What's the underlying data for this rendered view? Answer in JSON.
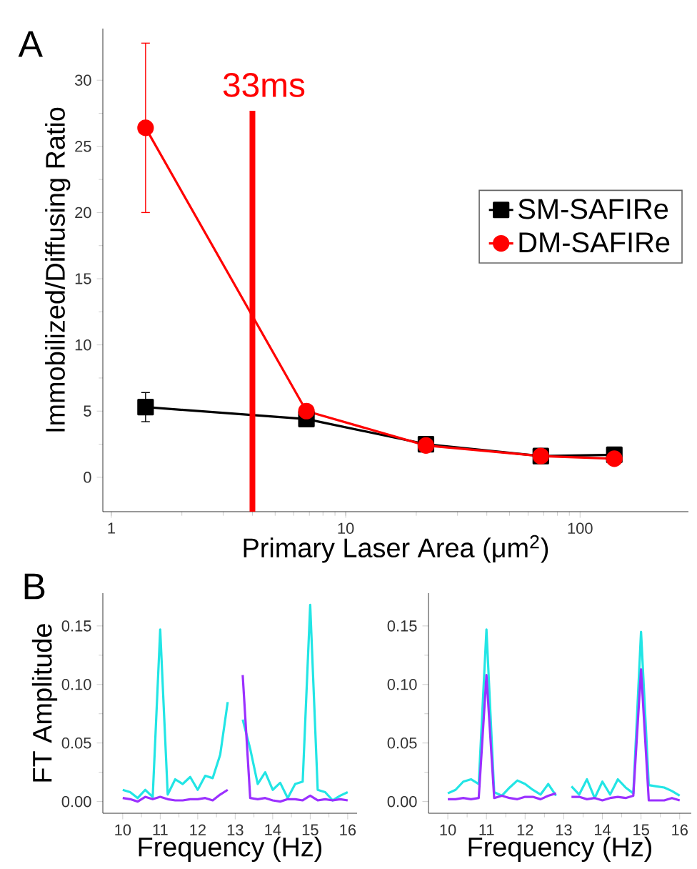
{
  "chart_data": [
    {
      "type": "line",
      "annotations": [
        "A"
      ],
      "xlabel": "Primary Laser Area (μm$^{2}$)",
      "ylabel": "Immobilized/Diffusing Ratio",
      "log": "x",
      "xlim": [
        0.92,
        290
      ],
      "ylim": [
        -2.6,
        33.9
      ],
      "xticks": [
        1,
        10,
        100
      ],
      "yticks": [
        0,
        5,
        10,
        15,
        20,
        25,
        30
      ],
      "legend": "right",
      "ref_lines": [
        {
          "axis": "x",
          "value": 4,
          "label": "33ms",
          "color": "#ff0000"
        }
      ],
      "x": [
        1.4,
        6.8,
        22,
        68,
        140
      ],
      "series": [
        {
          "name": "SM-SAFIRe",
          "color": "#000000",
          "marker": "square",
          "values": [
            5.3,
            4.4,
            2.5,
            1.6,
            1.7
          ],
          "errors": [
            1.1,
            null,
            null,
            null,
            0.3
          ]
        },
        {
          "name": "DM-SAFIRe",
          "color": "#ff0000",
          "marker": "circle",
          "values": [
            26.4,
            5.0,
            2.4,
            1.6,
            1.4
          ],
          "errors": [
            [
              20,
              32.8
            ],
            null,
            null,
            null,
            null
          ]
        }
      ]
    },
    {
      "type": "line",
      "annotations": [
        "B"
      ],
      "xlabel": "Frequency (Hz)",
      "ylabel": "FT Amplitude",
      "xlim": [
        9.47,
        16.25
      ],
      "ylim": [
        -0.01,
        0.178
      ],
      "xticks": [
        10,
        11,
        12,
        13,
        14,
        15,
        16
      ],
      "yticks": [
        {
          "value": 0,
          "label": "0.00"
        },
        {
          "value": 0.05,
          "label": "0.05"
        },
        {
          "value": 0.1,
          "label": "0.10"
        },
        {
          "value": 0.15,
          "label": "0.15"
        }
      ],
      "x": [
        10.0,
        10.2,
        10.4,
        10.6,
        10.8,
        11.0,
        11.2,
        11.4,
        11.6,
        11.8,
        12.0,
        12.2,
        12.4,
        12.6,
        12.8,
        13.0,
        13.2,
        13.4,
        13.6,
        13.8,
        14.0,
        14.2,
        14.4,
        14.6,
        14.8,
        15.0,
        15.2,
        15.4,
        15.6,
        15.8,
        16.0
      ],
      "series": [
        {
          "color": "#22e5e5",
          "values": [
            0.01,
            0.008,
            0.003,
            0.01,
            0.004,
            0.147,
            0.006,
            0.019,
            0.015,
            0.021,
            0.01,
            0.022,
            0.02,
            0.04,
            0.085,
            null,
            0.07,
            0.045,
            0.015,
            0.025,
            0.01,
            0.016,
            0.003,
            0.015,
            0.017,
            0.168,
            0.01,
            0.008,
            0.001,
            0.005,
            0.008
          ]
        },
        {
          "color": "#9b30ff",
          "values": [
            0.003,
            0.002,
            0.0,
            0.004,
            0.002,
            0.004,
            0.002,
            0.001,
            0.001,
            0.002,
            0.002,
            0.003,
            0.001,
            0.006,
            0.01,
            null,
            0.108,
            0.003,
            0.002,
            0.003,
            0.001,
            0.0,
            0.002,
            0.002,
            0.001,
            0.005,
            0.001,
            0.002,
            0.001,
            0.002,
            0.001
          ]
        }
      ]
    },
    {
      "type": "line",
      "xlabel": "Frequency (Hz)",
      "xlim": [
        9.5,
        16.3
      ],
      "ylim": [
        -0.01,
        0.178
      ],
      "xticks": [
        10,
        11,
        12,
        13,
        14,
        15,
        16
      ],
      "yticks": [
        {
          "value": 0,
          "label": "0.00"
        },
        {
          "value": 0.05,
          "label": "0.05"
        },
        {
          "value": 0.1,
          "label": "0.10"
        },
        {
          "value": 0.15,
          "label": "0.15"
        }
      ],
      "x": [
        10.0,
        10.2,
        10.4,
        10.6,
        10.8,
        11.0,
        11.2,
        11.4,
        11.6,
        11.8,
        12.0,
        12.2,
        12.4,
        12.6,
        12.8,
        13.0,
        13.2,
        13.4,
        13.6,
        13.8,
        14.0,
        14.2,
        14.4,
        14.6,
        14.8,
        15.0,
        15.2,
        15.4,
        15.6,
        15.8,
        16.0
      ],
      "series": [
        {
          "color": "#22e5e5",
          "values": [
            0.007,
            0.01,
            0.017,
            0.019,
            0.015,
            0.147,
            0.008,
            0.005,
            0.012,
            0.018,
            0.015,
            0.01,
            0.006,
            0.015,
            0.005,
            null,
            0.013,
            0.006,
            0.019,
            0.003,
            0.017,
            0.006,
            0.019,
            0.012,
            0.007,
            0.145,
            0.014,
            0.013,
            0.012,
            0.009,
            0.005
          ]
        },
        {
          "color": "#9b30ff",
          "values": [
            0.002,
            0.002,
            0.003,
            0.002,
            0.003,
            0.108,
            0.003,
            0.005,
            0.003,
            0.002,
            0.004,
            0.004,
            0.002,
            0.005,
            0.007,
            null,
            0.004,
            0.004,
            0.002,
            0.003,
            0.001,
            0.003,
            0.004,
            0.003,
            0.005,
            0.113,
            0.001,
            0.001,
            0.001,
            0.003,
            0.001
          ]
        }
      ]
    }
  ]
}
